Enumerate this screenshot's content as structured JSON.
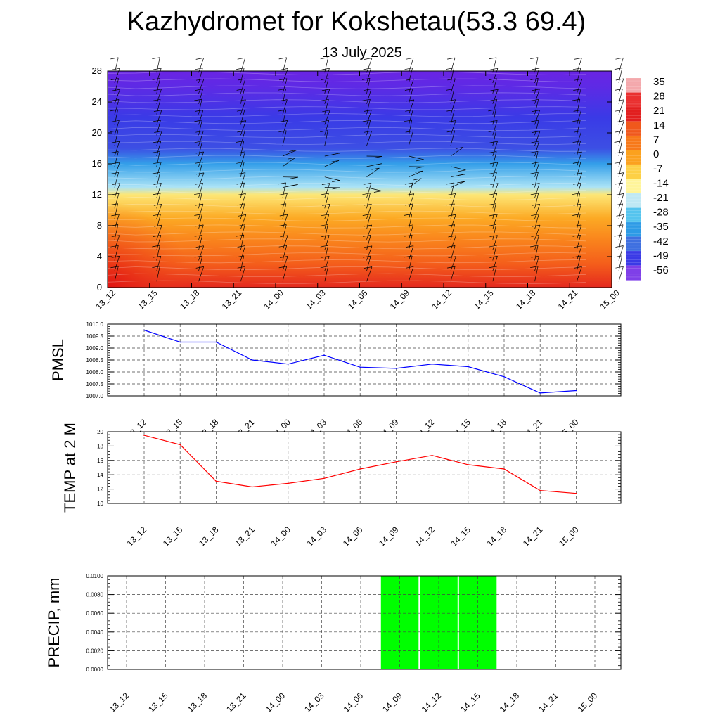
{
  "title": "Kazhydromet for Kokshetau(53.3 69.4)",
  "subtitle": "13 July 2025",
  "chart_data": [
    {
      "type": "heatmap",
      "name": "cross-section",
      "x": [
        "13_12",
        "13_15",
        "13_18",
        "13_21",
        "14_00",
        "14_03",
        "14_06",
        "14_09",
        "14_12",
        "14_15",
        "14_18",
        "14_21",
        "15_00"
      ],
      "yticks": [
        0,
        4,
        8,
        12,
        16,
        20,
        24,
        28
      ],
      "ylim": [
        0,
        28
      ],
      "colorbar_labels": [
        "35",
        "28",
        "21",
        "14",
        "7",
        "0",
        "-7",
        "-14",
        "-21",
        "-28",
        "-35",
        "-42",
        "-49",
        "-56"
      ],
      "colorbar_colors": [
        "#f4a8ac",
        "#ea3030",
        "#e21f1f",
        "#f0581c",
        "#f7791a",
        "#fba11e",
        "#fdd046",
        "#fff59a",
        "#bfe8f4",
        "#55c4ee",
        "#2d9be6",
        "#3f70e0",
        "#3a3ae6",
        "#7f3fe8"
      ],
      "profile": [
        {
          "z": 0,
          "t": 30
        },
        {
          "z": 3,
          "t": 20
        },
        {
          "z": 6,
          "t": 13
        },
        {
          "z": 9,
          "t": 5
        },
        {
          "z": 12,
          "t": -7
        },
        {
          "z": 13,
          "t": -18
        },
        {
          "z": 16,
          "t": -32
        },
        {
          "z": 18,
          "t": -48
        },
        {
          "z": 22,
          "t": -52
        },
        {
          "z": 26,
          "t": -58
        },
        {
          "z": 28,
          "t": -60
        }
      ]
    },
    {
      "type": "line",
      "ylabel": "PMSL",
      "x": [
        "13_12",
        "13_15",
        "13_18",
        "13_21",
        "14_00",
        "14_03",
        "14_06",
        "14_09",
        "14_12",
        "14_15",
        "14_18",
        "14_21",
        "15_00"
      ],
      "values": [
        1009.75,
        1009.25,
        1009.25,
        1008.5,
        1008.33,
        1008.7,
        1008.2,
        1008.15,
        1008.33,
        1008.22,
        1007.8,
        1007.12,
        1007.22
      ],
      "ylim": [
        1007.0,
        1010.0
      ],
      "yticks": [
        "1007.0",
        "1007.5",
        "1008.0",
        "1008.5",
        "1009.0",
        "1009.5",
        "1010.0"
      ],
      "color": "#0000ff",
      "grid": true
    },
    {
      "type": "line",
      "ylabel": "TEMP at 2 M",
      "x": [
        "13_12",
        "13_15",
        "13_18",
        "13_21",
        "14_00",
        "14_03",
        "14_06",
        "14_09",
        "14_12",
        "14_15",
        "14_18",
        "14_21",
        "15_00"
      ],
      "values": [
        19.5,
        18.2,
        13.1,
        12.3,
        12.8,
        13.5,
        14.8,
        15.8,
        16.7,
        15.4,
        14.8,
        11.8,
        11.4
      ],
      "ylim": [
        10,
        20
      ],
      "yticks": [
        "10",
        "12",
        "14",
        "16",
        "18",
        "20"
      ],
      "color": "#ff0000",
      "grid": true
    },
    {
      "type": "bar",
      "ylabel": "PRECIP, mm",
      "x": [
        "13_12",
        "13_15",
        "13_18",
        "13_21",
        "14_00",
        "14_03",
        "14_06",
        "14_09",
        "14_12",
        "14_15",
        "14_18",
        "14_21",
        "15_00"
      ],
      "values": [
        0,
        0,
        0,
        0,
        0,
        0,
        0,
        0.01,
        0.01,
        0.01,
        0,
        0,
        0
      ],
      "ylim": [
        0,
        0.01
      ],
      "yticks": [
        "0.0000",
        "0.0020",
        "0.0040",
        "0.0060",
        "0.0080",
        "0.0100"
      ],
      "color": "#00ff00",
      "grid": true
    }
  ]
}
